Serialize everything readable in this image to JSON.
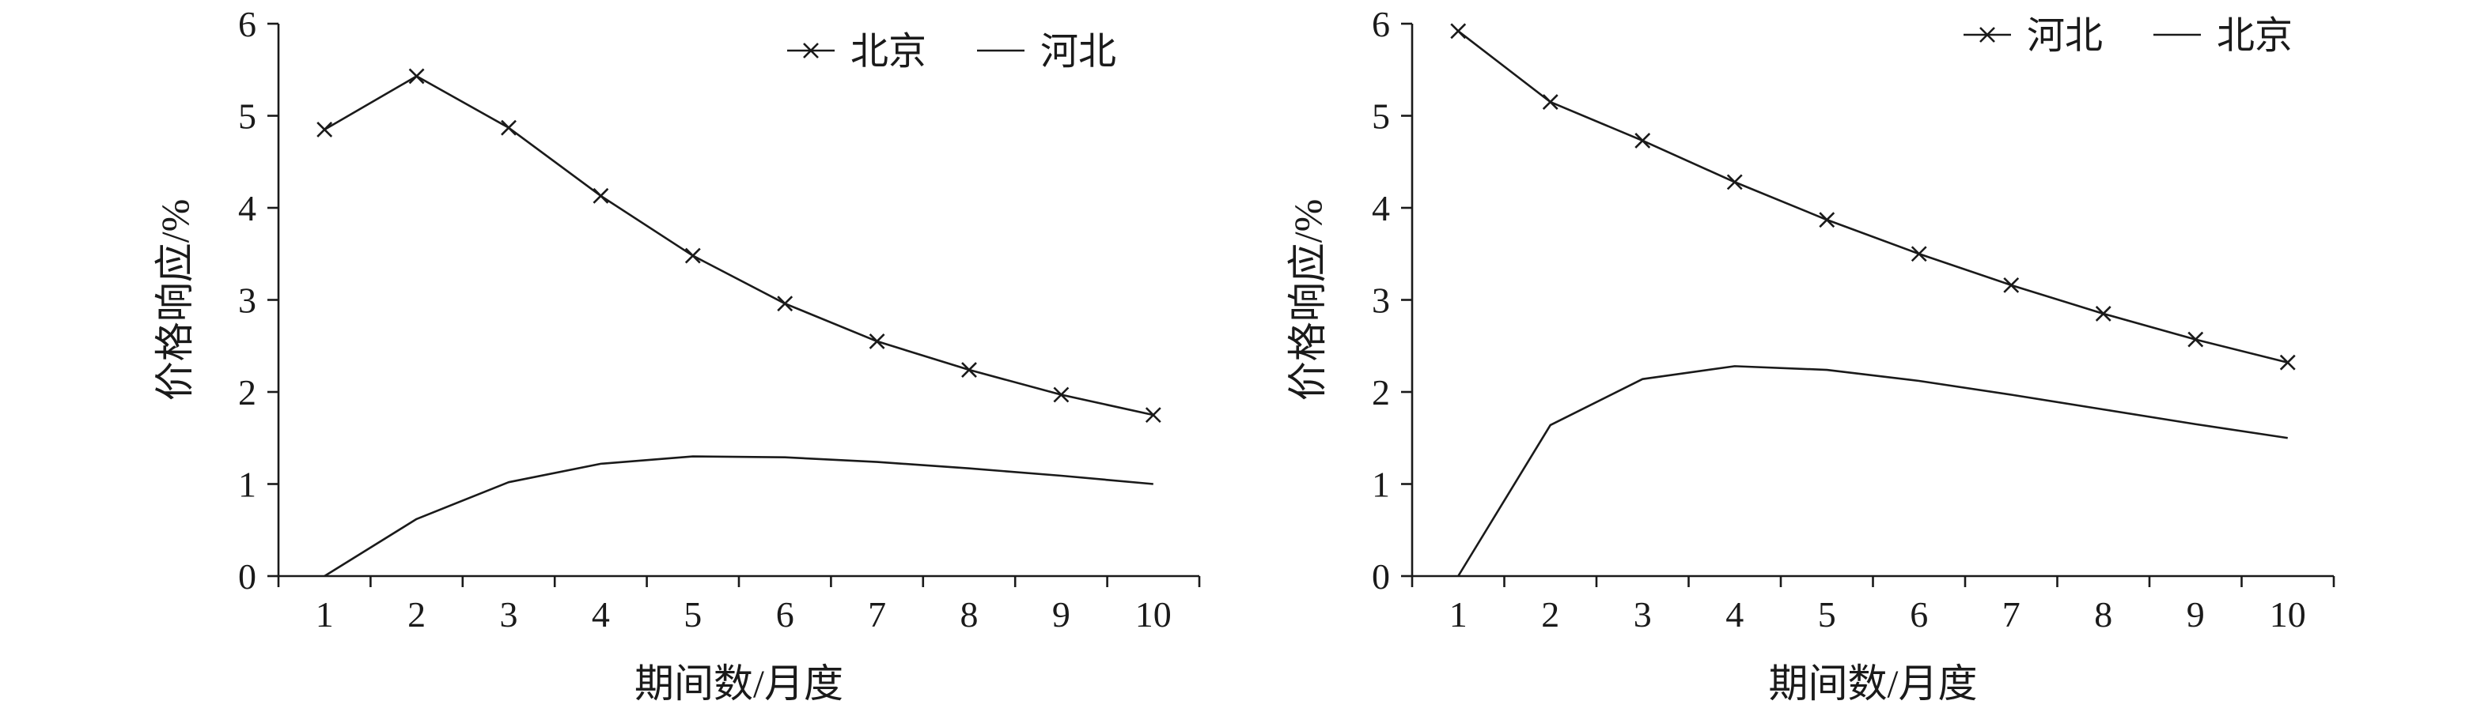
{
  "chart_data": [
    {
      "type": "line",
      "xlabel": "期间数/月度",
      "ylabel": "价格响应/%",
      "x": [
        1,
        2,
        3,
        4,
        5,
        6,
        7,
        8,
        9,
        10
      ],
      "xticks": [
        "1",
        "2",
        "3",
        "4",
        "5",
        "6",
        "7",
        "8",
        "9",
        "10"
      ],
      "yticks": [
        "0",
        "1",
        "2",
        "3",
        "4",
        "5",
        "6"
      ],
      "ylim": [
        0,
        6
      ],
      "grid": false,
      "legend": "top-right",
      "series": [
        {
          "name": "北京",
          "style": "line-x-marker",
          "values": [
            4.85,
            5.43,
            4.87,
            4.13,
            3.48,
            2.96,
            2.55,
            2.24,
            1.97,
            1.75
          ]
        },
        {
          "name": "河北",
          "style": "line",
          "values": [
            0.0,
            0.62,
            1.02,
            1.22,
            1.3,
            1.29,
            1.24,
            1.17,
            1.09,
            1.0
          ]
        }
      ]
    },
    {
      "type": "line",
      "xlabel": "期间数/月度",
      "ylabel": "价格响应/%",
      "x": [
        1,
        2,
        3,
        4,
        5,
        6,
        7,
        8,
        9,
        10
      ],
      "xticks": [
        "1",
        "2",
        "3",
        "4",
        "5",
        "6",
        "7",
        "8",
        "9",
        "10"
      ],
      "yticks": [
        "0",
        "1",
        "2",
        "3",
        "4",
        "5",
        "6"
      ],
      "ylim": [
        0,
        6
      ],
      "grid": false,
      "legend": "top-right",
      "series": [
        {
          "name": "河北",
          "style": "line-x-marker",
          "values": [
            5.92,
            5.15,
            4.73,
            4.28,
            3.87,
            3.5,
            3.16,
            2.85,
            2.57,
            2.32
          ]
        },
        {
          "name": "北京",
          "style": "line",
          "values": [
            0.0,
            1.64,
            2.14,
            2.28,
            2.24,
            2.12,
            1.97,
            1.81,
            1.65,
            1.5
          ]
        }
      ]
    }
  ]
}
